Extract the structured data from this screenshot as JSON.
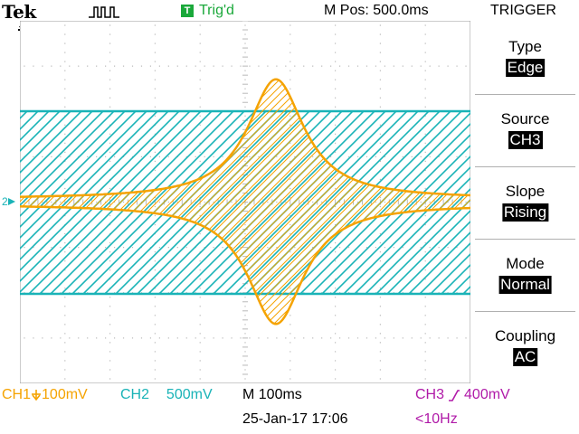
{
  "header": {
    "brand": "Tek",
    "trigger_state_badge": "T",
    "trigger_state": "Trig'd",
    "horizontal_position": "M Pos: 500.0ms",
    "menu_title": "TRIGGER",
    "icons": [
      "acquisition-waveform-icon",
      "trigger-position-marker-icon"
    ]
  },
  "markers": {
    "ch2_level_label": "2"
  },
  "trigger_menu": [
    {
      "label": "Type",
      "value": "Edge"
    },
    {
      "label": "Source",
      "value": "CH3"
    },
    {
      "label": "Slope",
      "value": "Rising"
    },
    {
      "label": "Mode",
      "value": "Normal"
    },
    {
      "label": "Coupling",
      "value": "AC"
    }
  ],
  "status": {
    "ch1_label": "CH1",
    "ch1_scale": "100mV",
    "ch1_coupling_icon": "bandwidth-limit-arrow-icon",
    "ch2_label": "CH2",
    "ch2_scale": "500mV",
    "timebase": "M 100ms",
    "ch3_label": "CH3",
    "ch3_slope_icon": "rising-edge-icon",
    "ch3_level": "400mV",
    "datetime": "25-Jan-17 17:06",
    "trigger_frequency": "<10Hz"
  },
  "colors": {
    "ch1": "#f5a300",
    "ch2": "#19b3b7",
    "ch3": "#b01aa8",
    "trig_state": "#1aa83a",
    "grid": "#b8b8b8"
  },
  "display": {
    "grid_divisions_x": 10,
    "grid_divisions_y": 8,
    "ch2_band_volts_top": 1.25,
    "ch2_band_volts_bottom": -1.25,
    "ch1_envelope_peak_div": 2.7
  }
}
